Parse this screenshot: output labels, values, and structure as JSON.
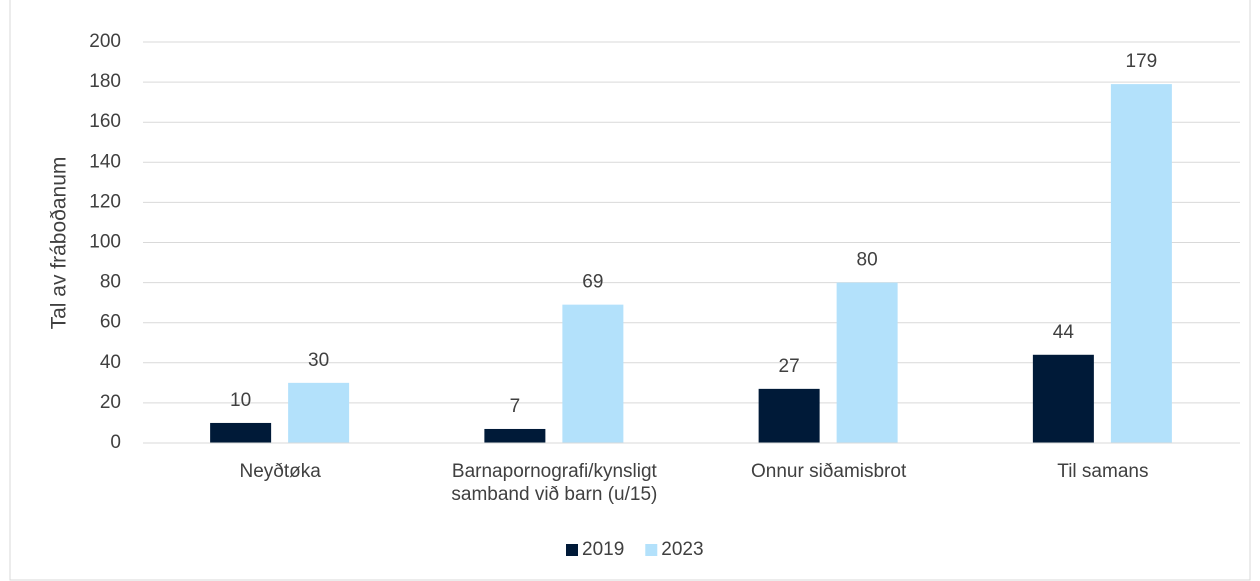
{
  "chart_data": {
    "type": "bar",
    "y_label": "Tal av fráboðanum",
    "categories": [
      "Neyðtøka",
      "Barnapornografi/kynsligt samband við barn (u/15)",
      "Onnur siðamisbrot",
      "Til samans"
    ],
    "series": [
      {
        "name": "2019",
        "color": "#001a38",
        "values": [
          10,
          7,
          27,
          44
        ]
      },
      {
        "name": "2023",
        "color": "#b3e1fb",
        "values": [
          30,
          69,
          80,
          179
        ]
      }
    ],
    "ylim": [
      0,
      200
    ],
    "yticks": [
      0,
      20,
      40,
      60,
      80,
      100,
      120,
      140,
      160,
      180,
      200
    ],
    "grid": true,
    "legend": "bottom"
  }
}
